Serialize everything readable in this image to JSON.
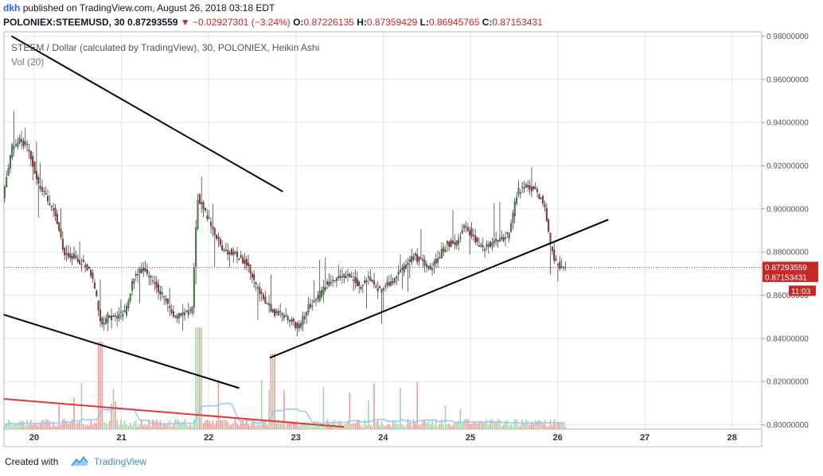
{
  "header": {
    "user": "dkh",
    "published_text": "published on TradingView.com, August 26, 2018 03:18 EDT",
    "symbol": "POLONIEX:STEEMUSD, 30",
    "last": "0.87293559",
    "change": "−0.02927301 (−3.24%)",
    "o_label": "O:",
    "o_value": "0.87226135",
    "h_label": "H:",
    "h_value": "0.87359429",
    "l_label": "L:",
    "l_value": "0.86945765",
    "c_label": "C:",
    "c_value": "0.87153431"
  },
  "legend": {
    "title": "STEEM / Dollar (calculated by TradingView), 30, POLONIEX, Heikin Ashi",
    "volume": "Vol (20)"
  },
  "footer": {
    "created_with": "Created with",
    "brand": "TradingView"
  },
  "colors": {
    "up": "#4a8c4a",
    "down": "#b03030",
    "vol_up": "#a5d6a7",
    "vol_down": "#ef9a9a",
    "vol_ma": "#90caf9",
    "trend": "#000000",
    "red_line": "#e53935",
    "price_label_bg": "#c62828",
    "grid": "#e6e6e6"
  },
  "chart_data": {
    "type": "candlestick",
    "style": "Heikin Ashi",
    "y_axis": {
      "ticks": [
        "0.98000000",
        "0.96000000",
        "0.94000000",
        "0.92000000",
        "0.90000000",
        "0.88000000",
        "0.86000000",
        "0.84000000",
        "0.82000000",
        "0.80000000"
      ],
      "ylim": [
        0.798,
        0.982
      ]
    },
    "x_axis": {
      "ticks": [
        "20",
        "21",
        "22",
        "23",
        "24",
        "25",
        "26",
        "27",
        "28"
      ]
    },
    "price_labels": [
      {
        "text": "0.87293559",
        "value": 0.87293559
      },
      {
        "text": "0.87153431",
        "value": 0.87153431
      },
      {
        "text": "11:03",
        "value": 0.86
      }
    ],
    "grid": true,
    "price_path": [
      [
        19.65,
        0.905
      ],
      [
        19.75,
        0.928
      ],
      [
        19.85,
        0.932
      ],
      [
        19.95,
        0.928
      ],
      [
        20.05,
        0.912
      ],
      [
        20.15,
        0.905
      ],
      [
        20.25,
        0.898
      ],
      [
        20.35,
        0.88
      ],
      [
        20.45,
        0.878
      ],
      [
        20.55,
        0.875
      ],
      [
        20.65,
        0.872
      ],
      [
        20.72,
        0.86
      ],
      [
        20.78,
        0.845
      ],
      [
        20.85,
        0.85
      ],
      [
        20.95,
        0.85
      ],
      [
        21.05,
        0.852
      ],
      [
        21.15,
        0.868
      ],
      [
        21.25,
        0.872
      ],
      [
        21.35,
        0.868
      ],
      [
        21.45,
        0.862
      ],
      [
        21.55,
        0.855
      ],
      [
        21.62,
        0.85
      ],
      [
        21.72,
        0.852
      ],
      [
        21.82,
        0.852
      ],
      [
        21.88,
        0.906
      ],
      [
        21.95,
        0.9
      ],
      [
        22.05,
        0.892
      ],
      [
        22.15,
        0.882
      ],
      [
        22.25,
        0.88
      ],
      [
        22.35,
        0.878
      ],
      [
        22.45,
        0.875
      ],
      [
        22.55,
        0.865
      ],
      [
        22.65,
        0.858
      ],
      [
        22.75,
        0.852
      ],
      [
        22.85,
        0.852
      ],
      [
        22.95,
        0.848
      ],
      [
        23.05,
        0.845
      ],
      [
        23.15,
        0.855
      ],
      [
        23.25,
        0.858
      ],
      [
        23.35,
        0.865
      ],
      [
        23.45,
        0.866
      ],
      [
        23.55,
        0.87
      ],
      [
        23.65,
        0.868
      ],
      [
        23.75,
        0.864
      ],
      [
        23.85,
        0.868
      ],
      [
        23.95,
        0.862
      ],
      [
        24.05,
        0.865
      ],
      [
        24.15,
        0.868
      ],
      [
        24.25,
        0.873
      ],
      [
        24.35,
        0.878
      ],
      [
        24.45,
        0.876
      ],
      [
        24.55,
        0.872
      ],
      [
        24.65,
        0.878
      ],
      [
        24.75,
        0.884
      ],
      [
        24.85,
        0.884
      ],
      [
        24.95,
        0.893
      ],
      [
        25.05,
        0.886
      ],
      [
        25.15,
        0.882
      ],
      [
        25.25,
        0.884
      ],
      [
        25.35,
        0.886
      ],
      [
        25.45,
        0.888
      ],
      [
        25.55,
        0.908
      ],
      [
        25.65,
        0.91
      ],
      [
        25.75,
        0.909
      ],
      [
        25.85,
        0.903
      ],
      [
        25.92,
        0.885
      ],
      [
        25.98,
        0.876
      ],
      [
        26.05,
        0.873
      ],
      [
        26.1,
        0.872
      ]
    ],
    "trendlines": [
      {
        "from": [
          19.74,
          0.98
        ],
        "to": [
          22.85,
          0.908
        ]
      },
      {
        "from": [
          19.65,
          0.851
        ],
        "to": [
          22.35,
          0.817
        ]
      },
      {
        "from": [
          22.7,
          0.831
        ],
        "to": [
          26.58,
          0.895
        ]
      },
      {
        "from": [
          19.65,
          0.812
        ],
        "to": [
          23.55,
          0.799
        ]
      }
    ],
    "last_price": 0.87293559
  }
}
